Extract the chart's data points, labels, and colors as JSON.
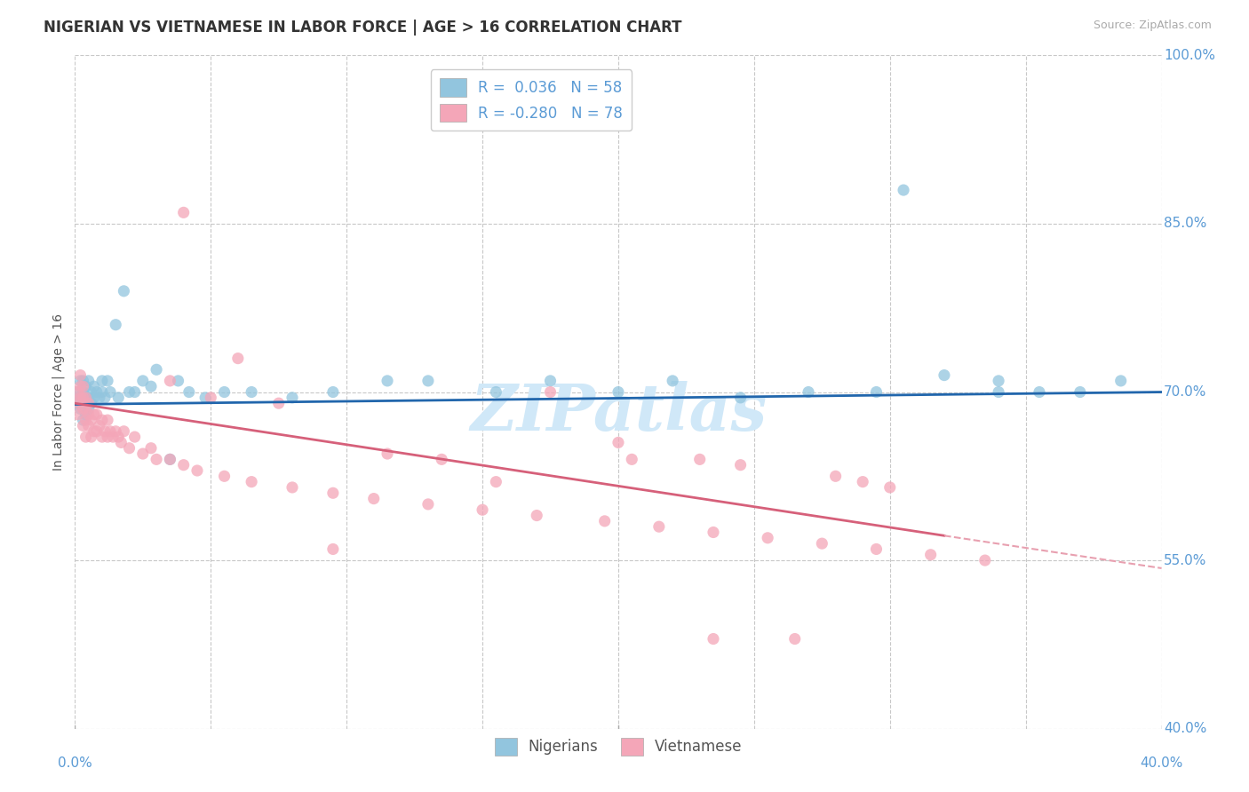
{
  "title": "NIGERIAN VS VIETNAMESE IN LABOR FORCE | AGE > 16 CORRELATION CHART",
  "source_text": "Source: ZipAtlas.com",
  "ylabel": "In Labor Force | Age > 16",
  "xlim": [
    0.0,
    0.4
  ],
  "ylim": [
    0.4,
    1.0
  ],
  "ytick_positions": [
    0.4,
    0.55,
    0.7,
    0.85,
    1.0
  ],
  "xtick_positions": [
    0.0,
    0.05,
    0.1,
    0.15,
    0.2,
    0.25,
    0.3,
    0.35,
    0.4
  ],
  "R_nigerian": 0.036,
  "N_nigerian": 58,
  "R_vietnamese": -0.28,
  "N_vietnamese": 78,
  "nigerian_color": "#92c5de",
  "vietnamese_color": "#f4a6b8",
  "trend_nigerian_color": "#2166ac",
  "trend_vietnamese_color": "#d6607a",
  "trend_vie_dashed_color": "#e8a0b0",
  "background_color": "#ffffff",
  "grid_color": "#c8c8c8",
  "title_color": "#333333",
  "tick_label_color": "#5b9bd5",
  "legend_color": "#5b9bd5",
  "watermark": "ZIPatlas",
  "watermark_color": "#d0e8f8",
  "nigerian_points_x": [
    0.001,
    0.001,
    0.002,
    0.002,
    0.002,
    0.003,
    0.003,
    0.003,
    0.003,
    0.004,
    0.004,
    0.004,
    0.005,
    0.005,
    0.005,
    0.006,
    0.006,
    0.007,
    0.007,
    0.008,
    0.009,
    0.01,
    0.01,
    0.011,
    0.012,
    0.013,
    0.015,
    0.016,
    0.018,
    0.02,
    0.022,
    0.025,
    0.028,
    0.03,
    0.035,
    0.038,
    0.042,
    0.048,
    0.055,
    0.065,
    0.08,
    0.095,
    0.115,
    0.13,
    0.155,
    0.175,
    0.2,
    0.22,
    0.245,
    0.27,
    0.295,
    0.32,
    0.34,
    0.355,
    0.37,
    0.385,
    0.305,
    0.34
  ],
  "nigerian_points_y": [
    0.69,
    0.7,
    0.685,
    0.695,
    0.71,
    0.675,
    0.69,
    0.7,
    0.71,
    0.68,
    0.695,
    0.705,
    0.685,
    0.695,
    0.71,
    0.69,
    0.7,
    0.695,
    0.705,
    0.7,
    0.695,
    0.7,
    0.71,
    0.695,
    0.71,
    0.7,
    0.76,
    0.695,
    0.79,
    0.7,
    0.7,
    0.71,
    0.705,
    0.72,
    0.64,
    0.71,
    0.7,
    0.695,
    0.7,
    0.7,
    0.695,
    0.7,
    0.71,
    0.71,
    0.7,
    0.71,
    0.7,
    0.71,
    0.695,
    0.7,
    0.7,
    0.715,
    0.71,
    0.7,
    0.7,
    0.71,
    0.88,
    0.7
  ],
  "vietnamese_points_x": [
    0.001,
    0.001,
    0.001,
    0.002,
    0.002,
    0.002,
    0.003,
    0.003,
    0.003,
    0.003,
    0.004,
    0.004,
    0.004,
    0.004,
    0.005,
    0.005,
    0.005,
    0.006,
    0.006,
    0.007,
    0.007,
    0.008,
    0.008,
    0.009,
    0.01,
    0.01,
    0.011,
    0.012,
    0.012,
    0.013,
    0.014,
    0.015,
    0.016,
    0.017,
    0.018,
    0.02,
    0.022,
    0.025,
    0.028,
    0.03,
    0.035,
    0.04,
    0.045,
    0.055,
    0.065,
    0.08,
    0.095,
    0.11,
    0.13,
    0.15,
    0.17,
    0.195,
    0.215,
    0.235,
    0.255,
    0.275,
    0.295,
    0.315,
    0.335,
    0.205,
    0.29,
    0.3,
    0.245,
    0.28,
    0.23,
    0.235,
    0.265,
    0.2,
    0.175,
    0.155,
    0.135,
    0.115,
    0.095,
    0.075,
    0.06,
    0.05,
    0.04,
    0.035
  ],
  "vietnamese_points_y": [
    0.7,
    0.69,
    0.68,
    0.695,
    0.705,
    0.715,
    0.67,
    0.685,
    0.695,
    0.705,
    0.66,
    0.675,
    0.685,
    0.695,
    0.67,
    0.68,
    0.69,
    0.66,
    0.675,
    0.665,
    0.68,
    0.665,
    0.68,
    0.67,
    0.66,
    0.675,
    0.665,
    0.66,
    0.675,
    0.665,
    0.66,
    0.665,
    0.66,
    0.655,
    0.665,
    0.65,
    0.66,
    0.645,
    0.65,
    0.64,
    0.64,
    0.635,
    0.63,
    0.625,
    0.62,
    0.615,
    0.61,
    0.605,
    0.6,
    0.595,
    0.59,
    0.585,
    0.58,
    0.575,
    0.57,
    0.565,
    0.56,
    0.555,
    0.55,
    0.64,
    0.62,
    0.615,
    0.635,
    0.625,
    0.64,
    0.48,
    0.48,
    0.655,
    0.7,
    0.62,
    0.64,
    0.645,
    0.56,
    0.69,
    0.73,
    0.695,
    0.86,
    0.71
  ],
  "nig_trend_x0": 0.0,
  "nig_trend_y0": 0.689,
  "nig_trend_x1": 0.4,
  "nig_trend_y1": 0.7,
  "vie_trend_solid_x0": 0.0,
  "vie_trend_solid_y0": 0.69,
  "vie_trend_solid_x1": 0.32,
  "vie_trend_solid_y1": 0.572,
  "vie_trend_dash_x0": 0.32,
  "vie_trend_dash_y0": 0.572,
  "vie_trend_dash_x1": 0.4,
  "vie_trend_dash_y1": 0.543
}
